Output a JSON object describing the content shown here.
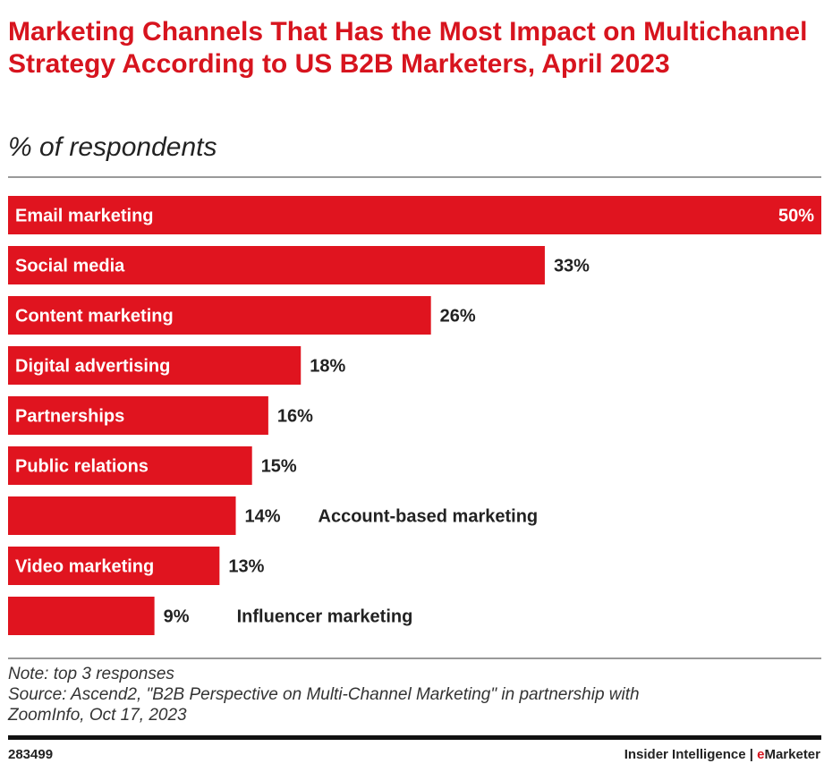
{
  "chart_data": {
    "type": "bar",
    "orientation": "horizontal",
    "title": "Marketing Channels That Has the Most Impact on Multichannel Strategy According to US B2B Marketers, April 2023",
    "subtitle": "% of respondents",
    "categories": [
      "Email marketing",
      "Social media",
      "Content marketing",
      "Digital advertising",
      "Partnerships",
      "Public relations",
      "Account-based marketing",
      "Video marketing",
      "Influencer marketing"
    ],
    "values": [
      50,
      33,
      26,
      18,
      16,
      15,
      14,
      13,
      9
    ],
    "value_labels": [
      "50%",
      "33%",
      "26%",
      "18%",
      "16%",
      "15%",
      "14%",
      "13%",
      "9%"
    ],
    "xlim": [
      0,
      50
    ],
    "grid": false,
    "bar_color": "#e0141f",
    "note": "Note: top 3 responses",
    "source_line1": "Source: Ascend2, \"B2B Perspective on Multi-Channel Marketing\" in partnership with",
    "source_line2": "ZoomInfo, Oct 17, 2023"
  },
  "footer": {
    "chart_id": "283499",
    "brand_prefix": "Insider Intelligence | ",
    "brand_e": "e",
    "brand_rest": "Marketer"
  }
}
